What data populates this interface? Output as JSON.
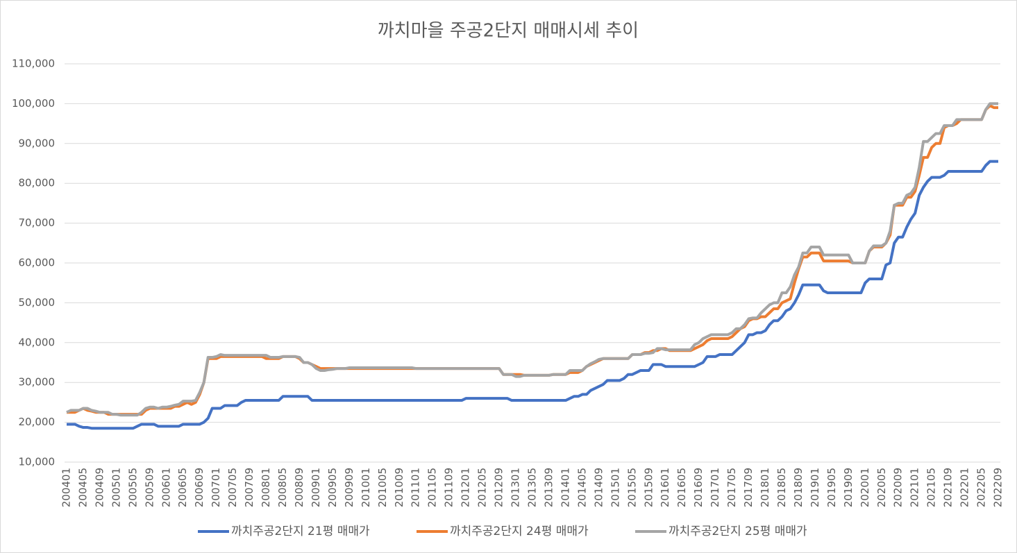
{
  "chart_data": {
    "type": "line",
    "title": "까치마을 주공2단지 매매시세 추이",
    "categories": [
      "200401",
      null,
      null,
      null,
      "200405",
      null,
      null,
      null,
      "200409",
      null,
      null,
      null,
      "200501",
      null,
      null,
      null,
      "200505",
      null,
      null,
      null,
      "200509",
      null,
      null,
      null,
      "200601",
      null,
      null,
      null,
      "200605",
      null,
      null,
      null,
      "200609",
      null,
      null,
      null,
      "200701",
      null,
      null,
      null,
      "200705",
      null,
      null,
      null,
      "200709",
      null,
      null,
      null,
      "200801",
      null,
      null,
      null,
      "200805",
      null,
      null,
      null,
      "200809",
      null,
      null,
      null,
      "200901",
      null,
      null,
      null,
      "200905",
      null,
      null,
      null,
      "200909",
      null,
      null,
      null,
      "201001",
      null,
      null,
      null,
      "201005",
      null,
      null,
      null,
      "201009",
      null,
      null,
      null,
      "201101",
      null,
      null,
      null,
      "201105",
      null,
      null,
      null,
      "201109",
      null,
      null,
      null,
      "201201",
      null,
      null,
      null,
      "201205",
      null,
      null,
      null,
      "201209",
      null,
      null,
      null,
      "201301",
      null,
      null,
      null,
      "201305",
      null,
      null,
      null,
      "201309",
      null,
      null,
      null,
      "201401",
      null,
      null,
      null,
      "201405",
      null,
      null,
      null,
      "201409",
      null,
      null,
      null,
      "201501",
      null,
      null,
      null,
      "201505",
      null,
      null,
      null,
      "201509",
      null,
      null,
      null,
      "201601",
      null,
      null,
      null,
      "201605",
      null,
      null,
      null,
      "201609",
      null,
      null,
      null,
      "201701",
      null,
      null,
      null,
      "201705",
      null,
      null,
      null,
      "201709",
      null,
      null,
      null,
      "201801",
      null,
      null,
      null,
      "201805",
      null,
      null,
      null,
      "201809",
      null,
      null,
      null,
      "201901",
      null,
      null,
      null,
      "201905",
      null,
      null,
      null,
      "201909",
      null,
      null,
      null,
      "202001",
      null,
      null,
      null,
      "202005",
      null,
      null,
      null,
      "202009",
      null,
      null,
      null,
      "202101",
      null,
      null,
      null,
      "202105",
      null,
      null,
      null,
      "202109",
      null,
      null,
      null,
      "202201",
      null,
      null,
      null,
      "202205",
      null,
      null,
      null,
      "202209"
    ],
    "series": [
      {
        "name": "까치주공2단지 21평 매매가",
        "color": "#4472c4",
        "values": [
          19500,
          19500,
          19500,
          19000,
          18700,
          18700,
          18500,
          18500,
          18500,
          18500,
          18500,
          18500,
          18500,
          18500,
          18500,
          18500,
          18500,
          19000,
          19500,
          19500,
          19500,
          19500,
          19000,
          19000,
          19000,
          19000,
          19000,
          19000,
          19500,
          19500,
          19500,
          19500,
          19500,
          20000,
          21000,
          23500,
          23500,
          23500,
          24200,
          24200,
          24200,
          24200,
          25000,
          25500,
          25500,
          25500,
          25500,
          25500,
          25500,
          25500,
          25500,
          25500,
          26500,
          26500,
          26500,
          26500,
          26500,
          26500,
          26500,
          25500,
          25500,
          25500,
          25500,
          25500,
          25500,
          25500,
          25500,
          25500,
          25500,
          25500,
          25500,
          25500,
          25500,
          25500,
          25500,
          25500,
          25500,
          25500,
          25500,
          25500,
          25500,
          25500,
          25500,
          25500,
          25500,
          25500,
          25500,
          25500,
          25500,
          25500,
          25500,
          25500,
          25500,
          25500,
          25500,
          25500,
          26000,
          26000,
          26000,
          26000,
          26000,
          26000,
          26000,
          26000,
          26000,
          26000,
          26000,
          25500,
          25500,
          25500,
          25500,
          25500,
          25500,
          25500,
          25500,
          25500,
          25500,
          25500,
          25500,
          25500,
          25500,
          26000,
          26500,
          26500,
          27000,
          27000,
          28000,
          28500,
          29000,
          29500,
          30500,
          30500,
          30500,
          30500,
          31000,
          32000,
          32000,
          32500,
          33000,
          33000,
          33000,
          34500,
          34500,
          34500,
          34000,
          34000,
          34000,
          34000,
          34000,
          34000,
          34000,
          34000,
          34500,
          35000,
          36500,
          36500,
          36500,
          37000,
          37000,
          37000,
          37000,
          38000,
          39000,
          40000,
          42000,
          42000,
          42500,
          42500,
          43000,
          44500,
          45500,
          45500,
          46500,
          48000,
          48500,
          50000,
          52000,
          54500,
          54500,
          54500,
          54500,
          54500,
          53000,
          52500,
          52500,
          52500,
          52500,
          52500,
          52500,
          52500,
          52500,
          52500,
          55000,
          56000,
          56000,
          56000,
          56000,
          59500,
          60000,
          65000,
          66500,
          66500,
          69000,
          71000,
          72500,
          77000,
          79000,
          80500,
          81500,
          81500,
          81500,
          82000,
          83000,
          83000,
          83000,
          83000,
          83000,
          83000,
          83000,
          83000,
          83000,
          84500,
          85500,
          85500,
          85500
        ]
      },
      {
        "name": "까치주공2단지 24평 매매가",
        "color": "#ed7d31",
        "values": [
          22500,
          22500,
          22500,
          23000,
          23500,
          23000,
          22800,
          22500,
          22500,
          22500,
          22000,
          22000,
          22000,
          22000,
          22000,
          22000,
          22000,
          22000,
          22000,
          23000,
          23500,
          23500,
          23500,
          23500,
          23500,
          23500,
          24000,
          24000,
          24500,
          25000,
          24500,
          25000,
          27000,
          30000,
          36000,
          36000,
          36000,
          36500,
          36500,
          36500,
          36500,
          36500,
          36500,
          36500,
          36500,
          36500,
          36500,
          36500,
          36000,
          36000,
          36000,
          36000,
          36500,
          36500,
          36500,
          36500,
          36000,
          35000,
          35000,
          34500,
          34000,
          33500,
          33500,
          33500,
          33500,
          33500,
          33500,
          33500,
          33500,
          33500,
          33500,
          33500,
          33500,
          33500,
          33500,
          33500,
          33500,
          33500,
          33500,
          33500,
          33500,
          33500,
          33500,
          33500,
          33500,
          33500,
          33500,
          33500,
          33500,
          33500,
          33500,
          33500,
          33500,
          33500,
          33500,
          33500,
          33500,
          33500,
          33500,
          33500,
          33500,
          33500,
          33500,
          33500,
          33500,
          32000,
          32000,
          32000,
          32000,
          32000,
          31800,
          31800,
          31800,
          31800,
          31800,
          31800,
          31800,
          32000,
          32000,
          32000,
          32000,
          32500,
          32500,
          32500,
          33000,
          34000,
          34500,
          35000,
          35500,
          36000,
          36000,
          36000,
          36000,
          36000,
          36000,
          36000,
          37000,
          37000,
          37000,
          37500,
          37500,
          38000,
          38000,
          38500,
          38500,
          38000,
          38000,
          38000,
          38000,
          38000,
          38000,
          38500,
          39000,
          39500,
          40500,
          41000,
          41000,
          41000,
          41000,
          41000,
          41500,
          42500,
          43500,
          44000,
          45500,
          46000,
          46000,
          46500,
          46500,
          47500,
          48500,
          48500,
          50000,
          50500,
          51000,
          55000,
          58500,
          61500,
          61500,
          62500,
          62500,
          62500,
          60500,
          60500,
          60500,
          60500,
          60500,
          60500,
          60500,
          60000,
          60000,
          60000,
          60000,
          63000,
          64000,
          64000,
          64000,
          65000,
          67000,
          74500,
          74500,
          74500,
          76500,
          76500,
          78000,
          82000,
          86500,
          86500,
          89000,
          90000,
          90000,
          94000,
          94500,
          94500,
          95000,
          96000,
          96000,
          96000,
          96000,
          96000,
          96000,
          98500,
          99500,
          99000,
          99000
        ]
      },
      {
        "name": "까치주공2단지 25평 매매가",
        "color": "#a5a5a5",
        "values": [
          22500,
          23000,
          23000,
          23000,
          23500,
          23500,
          23000,
          22800,
          22500,
          22500,
          22500,
          22000,
          22000,
          21800,
          21800,
          21800,
          21800,
          21800,
          22500,
          23500,
          23800,
          23800,
          23500,
          23800,
          23800,
          24000,
          24300,
          24500,
          25300,
          25300,
          25300,
          25500,
          27500,
          30000,
          36300,
          36300,
          36500,
          37000,
          36800,
          36800,
          36800,
          36800,
          36800,
          36800,
          36800,
          36800,
          36800,
          36800,
          36800,
          36300,
          36300,
          36300,
          36500,
          36500,
          36500,
          36500,
          36300,
          35000,
          35000,
          34500,
          33500,
          33000,
          33000,
          33200,
          33300,
          33500,
          33500,
          33500,
          33700,
          33700,
          33700,
          33700,
          33700,
          33700,
          33700,
          33700,
          33700,
          33700,
          33700,
          33700,
          33700,
          33700,
          33700,
          33700,
          33500,
          33500,
          33500,
          33500,
          33500,
          33500,
          33500,
          33500,
          33500,
          33500,
          33500,
          33500,
          33500,
          33500,
          33500,
          33500,
          33500,
          33500,
          33500,
          33500,
          33500,
          32000,
          32000,
          32000,
          31500,
          31500,
          31800,
          31800,
          31800,
          31800,
          31800,
          31800,
          31800,
          32000,
          32000,
          32000,
          32000,
          33000,
          33000,
          33000,
          33000,
          34000,
          34700,
          35200,
          35800,
          36000,
          36000,
          36000,
          36000,
          36000,
          36000,
          36000,
          37000,
          37000,
          37000,
          37300,
          37300,
          37500,
          38500,
          38500,
          38200,
          38200,
          38200,
          38200,
          38200,
          38200,
          38200,
          39500,
          40000,
          41000,
          41500,
          42000,
          42000,
          42000,
          42000,
          42000,
          42500,
          43500,
          43500,
          44500,
          46000,
          46200,
          46200,
          47500,
          48500,
          49500,
          50000,
          50000,
          52500,
          52500,
          54000,
          57000,
          59000,
          62500,
          62500,
          64000,
          64000,
          64000,
          62000,
          62000,
          62000,
          62000,
          62000,
          62000,
          62000,
          60000,
          60000,
          60000,
          60000,
          63000,
          64300,
          64300,
          64300,
          65000,
          68000,
          74500,
          75000,
          75000,
          77000,
          77500,
          79000,
          84000,
          90500,
          90500,
          91500,
          92500,
          92500,
          94500,
          94500,
          94500,
          96000,
          96000,
          96000,
          96000,
          96000,
          96000,
          96000,
          98500,
          100000,
          100000,
          100000
        ]
      }
    ],
    "ylim": [
      10000,
      110000
    ],
    "yticks": [
      {
        "value": 10000,
        "label": "10,000"
      },
      {
        "value": 20000,
        "label": "20,000"
      },
      {
        "value": 30000,
        "label": "30,000"
      },
      {
        "value": 40000,
        "label": "40,000"
      },
      {
        "value": 50000,
        "label": "50,000"
      },
      {
        "value": 60000,
        "label": "60,000"
      },
      {
        "value": 70000,
        "label": "70,000"
      },
      {
        "value": 80000,
        "label": "80,000"
      },
      {
        "value": 90000,
        "label": "90,000"
      },
      {
        "value": 100000,
        "label": "100,000"
      },
      {
        "value": 110000,
        "label": "110,000"
      }
    ],
    "grid": true,
    "legend": "bottom"
  }
}
